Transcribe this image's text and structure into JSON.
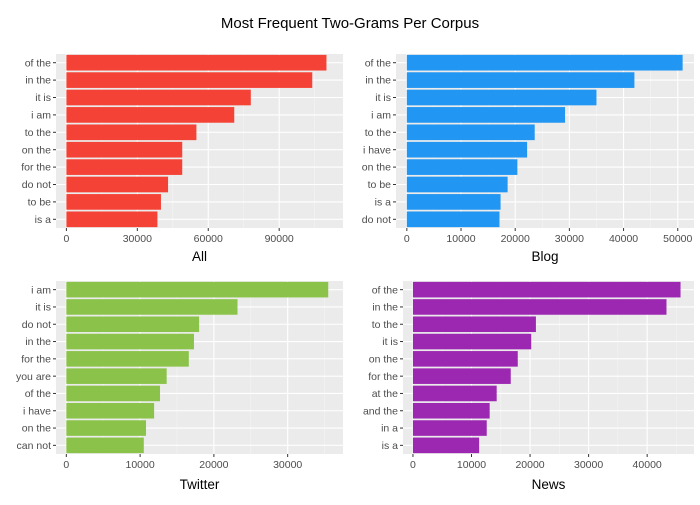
{
  "title": "Most Frequent Two-Grams Per Corpus",
  "chart_data": [
    {
      "type": "bar",
      "orientation": "horizontal",
      "xlabel": "All",
      "color": "#F44336",
      "xlim": [
        -4400,
        117000
      ],
      "xticks": [
        0,
        30000,
        60000,
        90000
      ],
      "xtick_labels": [
        "0",
        "30000",
        "60000",
        "90000"
      ],
      "categories": [
        "of the",
        "in the",
        "it is",
        "i am",
        "to the",
        "on the",
        "for the",
        "do not",
        "to be",
        "is a"
      ],
      "values": [
        110000,
        104000,
        78000,
        71000,
        55000,
        49000,
        49000,
        43000,
        40000,
        38500
      ],
      "grid": true
    },
    {
      "type": "bar",
      "orientation": "horizontal",
      "xlabel": "Blog",
      "color": "#2196F3",
      "xlim": [
        -2000,
        53000
      ],
      "xticks": [
        0,
        10000,
        20000,
        30000,
        40000,
        50000
      ],
      "xtick_labels": [
        "0",
        "10000",
        "20000",
        "30000",
        "40000",
        "50000"
      ],
      "categories": [
        "of the",
        "in the",
        "it is",
        "i am",
        "to the",
        "i have",
        "on the",
        "to be",
        "is a",
        "do not"
      ],
      "values": [
        50900,
        42000,
        35000,
        29200,
        23600,
        22200,
        20400,
        18600,
        17300,
        17100
      ],
      "grid": true
    },
    {
      "type": "bar",
      "orientation": "horizontal",
      "xlabel": "Twitter",
      "color": "#8BC34A",
      "xlim": [
        -1400,
        37500
      ],
      "xticks": [
        0,
        10000,
        20000,
        30000
      ],
      "xtick_labels": [
        "0",
        "10000",
        "20000",
        "30000"
      ],
      "categories": [
        "i am",
        "it is",
        "do not",
        "in the",
        "for the",
        "you are",
        "of the",
        "i have",
        "on the",
        "can not"
      ],
      "values": [
        35500,
        23200,
        18000,
        17300,
        16600,
        13600,
        12700,
        11900,
        10800,
        10500
      ],
      "grid": true
    },
    {
      "type": "bar",
      "orientation": "horizontal",
      "xlabel": "News",
      "color": "#9C27B0",
      "xlim": [
        -1700,
        48000
      ],
      "xticks": [
        0,
        10000,
        20000,
        30000,
        40000
      ],
      "xtick_labels": [
        "0",
        "10000",
        "20000",
        "30000",
        "40000"
      ],
      "categories": [
        "of the",
        "in the",
        "to the",
        "it is",
        "on the",
        "for the",
        "at the",
        "and the",
        "in a",
        "is a"
      ],
      "values": [
        45700,
        43300,
        21000,
        20200,
        17900,
        16700,
        14300,
        13100,
        12600,
        11300
      ],
      "grid": true
    }
  ]
}
